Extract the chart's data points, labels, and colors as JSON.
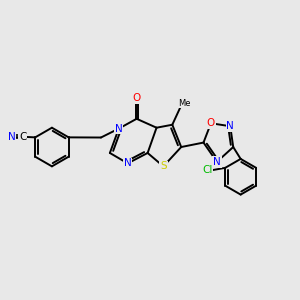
{
  "bg_color": "#e8e8e8",
  "bond_color": "#000000",
  "bond_width": 1.4,
  "atom_colors": {
    "N": "#0000ff",
    "O": "#ff0000",
    "S": "#cccc00",
    "Cl": "#00bb00"
  },
  "fs": 7.5,
  "fs_small": 6.0,
  "xlim": [
    -4.5,
    5.5
  ],
  "ylim": [
    -3.2,
    3.2
  ]
}
